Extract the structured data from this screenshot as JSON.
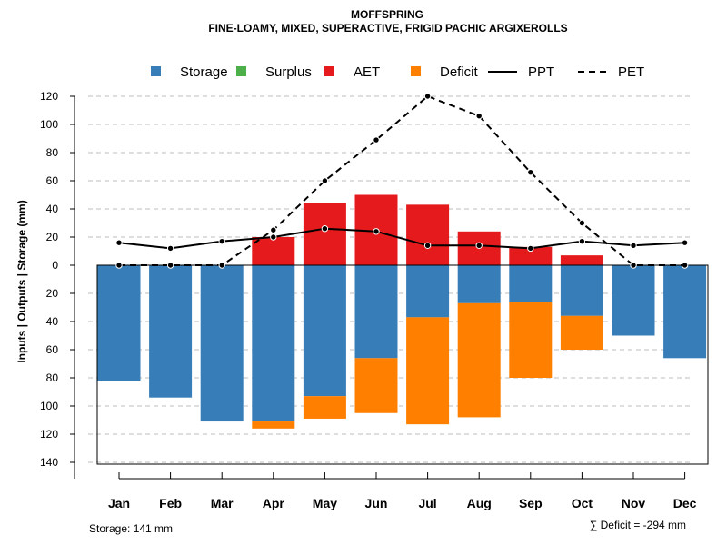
{
  "chart_data": {
    "type": "bar",
    "title": "MOFFSPRING",
    "subtitle": "FINE-LOAMY, MIXED, SUPERACTIVE, FRIGID PACHIC ARGIXEROLLS",
    "ylabel": "Inputs | Outputs | Storage    (mm)",
    "categories": [
      "Jan",
      "Feb",
      "Mar",
      "Apr",
      "May",
      "Jun",
      "Jul",
      "Aug",
      "Sep",
      "Oct",
      "Nov",
      "Dec"
    ],
    "ylim": [
      -140,
      120
    ],
    "yticks": [
      120,
      100,
      80,
      60,
      40,
      20,
      0,
      -20,
      -40,
      -60,
      -80,
      -100,
      -120,
      -140
    ],
    "ytick_labels": [
      "120",
      "100",
      "80",
      "60",
      "40",
      "20",
      "0",
      "20",
      "40",
      "60",
      "80",
      "100",
      "120",
      "140"
    ],
    "grid": true,
    "legend": {
      "position": "top",
      "items": [
        {
          "label": "Storage",
          "kind": "box",
          "color": "#377EB8"
        },
        {
          "label": "Surplus",
          "kind": "box",
          "color": "#4DAF4A"
        },
        {
          "label": "AET",
          "kind": "box",
          "color": "#E41A1C"
        },
        {
          "label": "Deficit",
          "kind": "box",
          "color": "#FF7F00"
        },
        {
          "label": "PPT",
          "kind": "solid-line",
          "color": "#000000"
        },
        {
          "label": "PET",
          "kind": "dashed-line",
          "color": "#000000"
        }
      ]
    },
    "series": [
      {
        "name": "Storage",
        "color": "#377EB8",
        "values": [
          -82,
          -94,
          -111,
          -111,
          -93,
          -66,
          -37,
          -27,
          -26,
          -36,
          -50,
          -66
        ]
      },
      {
        "name": "Surplus",
        "color": "#4DAF4A",
        "values": [
          0,
          0,
          0,
          0,
          0,
          0,
          0,
          0,
          0,
          0,
          0,
          0
        ]
      },
      {
        "name": "AET",
        "color": "#E41A1C",
        "values": [
          0,
          0,
          0,
          20,
          44,
          50,
          43,
          24,
          13,
          7,
          0,
          0
        ]
      },
      {
        "name": "Deficit",
        "color": "#FF7F00",
        "values": [
          0,
          0,
          0,
          -5,
          -16,
          -39,
          -76,
          -81,
          -54,
          -24,
          0,
          0
        ]
      },
      {
        "name": "PPT",
        "color": "#000000",
        "style": "solid",
        "values": [
          16,
          12,
          17,
          20,
          26,
          24,
          14,
          14,
          12,
          17,
          14,
          16
        ]
      },
      {
        "name": "PET",
        "color": "#000000",
        "style": "dashed",
        "values": [
          0,
          0,
          0,
          25,
          60,
          89,
          120,
          106,
          66,
          30,
          0,
          0
        ]
      }
    ],
    "storage_note": "Storage: 141 mm",
    "deficit_note": "∑ Deficit = -294 mm"
  }
}
